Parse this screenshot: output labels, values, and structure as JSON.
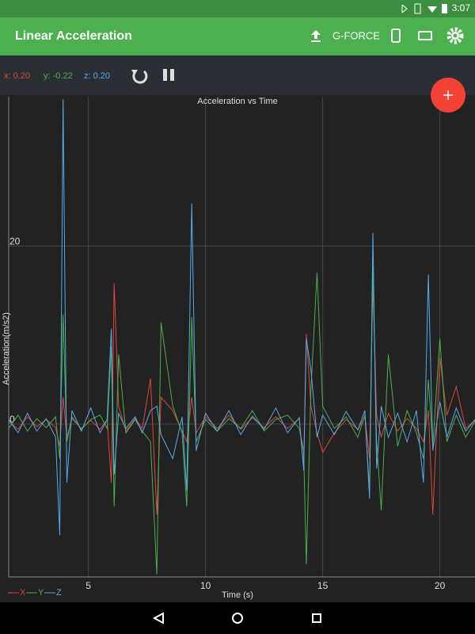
{
  "status_bar": {
    "time": "3:07"
  },
  "app_bar": {
    "title": "Linear Acceleration",
    "action": "G-FORCE"
  },
  "readout": {
    "x": "x: 0.20",
    "y": "y: -0.22",
    "z": "z: 0.20"
  },
  "chart_data": {
    "type": "line",
    "title": "Acceleration vs Time",
    "x_label": "Time (s)",
    "y_label": "Acceleration(m/s2)",
    "xlim": [
      1.6,
      21.5
    ],
    "ylim": [
      -17.2,
      36.8
    ],
    "xticks": [
      5,
      10,
      15,
      20
    ],
    "yticks": [
      0,
      20
    ],
    "grid": true,
    "legend": "bottom-left",
    "x": [
      1.6,
      2.0,
      2.4,
      2.8,
      3.2,
      3.6,
      3.78,
      3.92,
      4.08,
      4.3,
      4.7,
      5.1,
      5.5,
      5.8,
      5.98,
      6.1,
      6.29,
      6.6,
      7.0,
      7.3,
      7.65,
      7.92,
      8.1,
      8.6,
      9.0,
      9.2,
      9.41,
      9.6,
      10.0,
      10.5,
      11.0,
      11.5,
      12.0,
      12.5,
      13.0,
      13.5,
      14.0,
      14.19,
      14.3,
      14.5,
      14.76,
      15.0,
      15.5,
      16.0,
      16.5,
      16.8,
      17.0,
      17.14,
      17.3,
      17.5,
      17.8,
      18.2,
      18.6,
      19.0,
      19.3,
      19.51,
      19.7,
      20.0,
      20.3,
      20.7,
      21.1,
      21.5
    ],
    "series": [
      {
        "name": "X",
        "color": "#e0463c",
        "values": [
          0.3,
          -0.6,
          0.8,
          -0.3,
          0.5,
          -0.4,
          -2.5,
          3.0,
          -1.5,
          0.6,
          -0.5,
          0.4,
          -0.6,
          0.5,
          -6.6,
          15.8,
          2.0,
          -0.8,
          0.6,
          -0.5,
          5.1,
          -10.2,
          3.0,
          1.5,
          -0.8,
          -2.0,
          3.0,
          -1.0,
          0.8,
          -0.5,
          1.0,
          -0.6,
          0.7,
          -0.4,
          0.8,
          -0.5,
          0.6,
          -4.8,
          10.1,
          2.0,
          -1.0,
          -3.2,
          -1.0,
          0.5,
          -0.6,
          0.8,
          -3.9,
          15.9,
          1.0,
          -1.5,
          1.2,
          -0.8,
          0.6,
          -0.5,
          -2.0,
          1.5,
          -10.2,
          7.4,
          1.0,
          4.2,
          -0.5,
          0.4
        ]
      },
      {
        "name": "Y",
        "color": "#4caf50",
        "values": [
          -0.5,
          1.0,
          -0.8,
          0.6,
          -0.4,
          0.8,
          -3.9,
          12.3,
          -2.0,
          0.8,
          -0.6,
          0.5,
          1.0,
          -0.5,
          8.7,
          -9.3,
          7.8,
          -1.0,
          0.5,
          -0.8,
          -2.0,
          -16.9,
          11.4,
          2.0,
          -1.0,
          -9.3,
          12.0,
          -2.0,
          0.5,
          -0.8,
          0.6,
          -0.5,
          1.5,
          -0.8,
          0.5,
          1.0,
          -0.5,
          -3.0,
          -15.8,
          4.0,
          17.0,
          2.0,
          -0.5,
          0.8,
          -1.5,
          1.0,
          -7.5,
          17.7,
          -2.0,
          -9.7,
          7.8,
          -2.5,
          1.5,
          -1.0,
          -3.9,
          5.0,
          -2.5,
          9.6,
          -2.0,
          1.0,
          -1.5,
          0.3
        ]
      },
      {
        "name": "Z",
        "color": "#5aa9e6",
        "values": [
          0.5,
          -1.0,
          1.2,
          -0.8,
          0.6,
          -1.5,
          -12.5,
          36.5,
          -6.6,
          1.5,
          -0.8,
          1.8,
          -1.0,
          0.5,
          10.7,
          -5.7,
          1.2,
          -0.5,
          0.8,
          -1.0,
          1.5,
          2.0,
          -1.2,
          -3.9,
          0.8,
          -7.5,
          24.8,
          -3.0,
          1.2,
          -0.8,
          1.5,
          -1.2,
          0.9,
          -0.6,
          1.8,
          -1.0,
          0.7,
          -5.2,
          9.6,
          6.0,
          -1.5,
          1.0,
          -1.2,
          1.4,
          -0.7,
          1.5,
          -8.4,
          21.5,
          -5.0,
          2.0,
          -1.5,
          1.2,
          -2.0,
          1.5,
          -6.6,
          16.8,
          -3.0,
          2.5,
          -1.5,
          1.8,
          -0.8,
          0.5
        ]
      }
    ]
  }
}
